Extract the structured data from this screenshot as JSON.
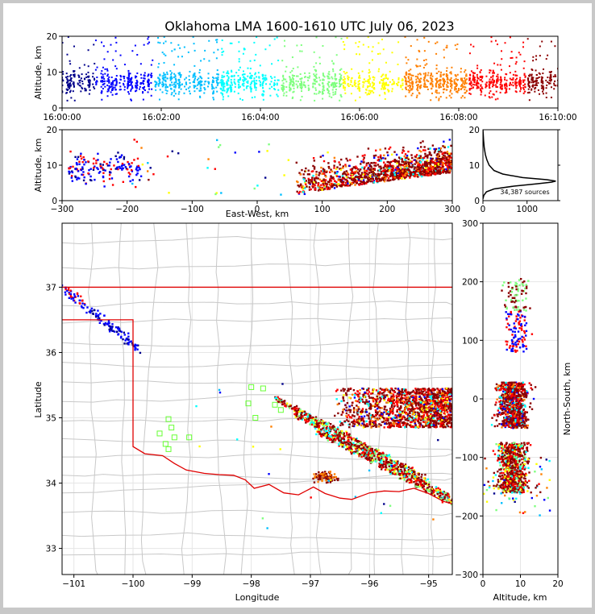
{
  "figure": {
    "title": "Oklahoma LMA 1600-1610 UTC July 06, 2023"
  },
  "chart_data": [
    {
      "panel": "altitude-time",
      "type": "scatter",
      "ylabel": "Altitude, km",
      "ylim": [
        0,
        20
      ],
      "yticks": [
        "0",
        "10",
        "20"
      ],
      "xlim": [
        "16:00:00",
        "16:10:00"
      ],
      "xticks": [
        "16:00:00",
        "16:02:00",
        "16:04:00",
        "16:06:00",
        "16:08:00",
        "16:10:00"
      ],
      "color_by": "time",
      "colormap": [
        "#00008b",
        "#0000ff",
        "#00bfff",
        "#00ffff",
        "#7fff7f",
        "#ffff00",
        "#ff7f00",
        "#ff0000",
        "#8b0000"
      ]
    },
    {
      "panel": "altitude-eastwest",
      "type": "scatter",
      "xlabel": "East-West, km",
      "ylabel": "Altitude, km",
      "xlim": [
        -300,
        300
      ],
      "ylim": [
        0,
        20
      ],
      "xticks": [
        "−300",
        "−200",
        "−100",
        "0",
        "100",
        "200",
        "300"
      ],
      "yticks": [
        "0",
        "10",
        "20"
      ]
    },
    {
      "panel": "altitude-histogram",
      "type": "line",
      "xlim": [
        0,
        1700
      ],
      "ylim": [
        0,
        20
      ],
      "xticks": [
        "0",
        "1000"
      ],
      "yticks": [
        "0",
        "10",
        "20"
      ],
      "source_count_label": "34,387 sources",
      "profile": [
        [
          0,
          0.5
        ],
        [
          20,
          1.5
        ],
        [
          80,
          2.5
        ],
        [
          250,
          3.3
        ],
        [
          700,
          4.1
        ],
        [
          1200,
          4.7
        ],
        [
          1550,
          5.2
        ],
        [
          1650,
          5.5
        ],
        [
          1450,
          5.9
        ],
        [
          900,
          6.5
        ],
        [
          450,
          7.5
        ],
        [
          250,
          8.5
        ],
        [
          140,
          10
        ],
        [
          90,
          11.5
        ],
        [
          55,
          13
        ],
        [
          30,
          15
        ],
        [
          15,
          17
        ],
        [
          5,
          19
        ],
        [
          0,
          20
        ]
      ]
    },
    {
      "panel": "plan-view-map",
      "type": "scatter",
      "xlabel": "Longitude",
      "ylabel": "Latitude",
      "xlim": [
        -101.2,
        -94.6
      ],
      "ylim": [
        32.6,
        37.98
      ],
      "xticks": [
        "−101",
        "−100",
        "−99",
        "−98",
        "−97",
        "−96",
        "−95"
      ],
      "yticks": [
        "33",
        "34",
        "35",
        "36",
        "37"
      ]
    },
    {
      "panel": "northsouth-altitude",
      "type": "scatter",
      "xlabel": "Altitude, km",
      "ylabel": "North-South, km",
      "xlim": [
        0,
        20
      ],
      "ylim": [
        -300,
        300
      ],
      "xticks": [
        "0",
        "10",
        "20"
      ],
      "yticks": [
        "−300",
        "−200",
        "−100",
        "0",
        "100",
        "200",
        "300"
      ]
    }
  ],
  "colors": {
    "state_border": "#e00000",
    "county_lines": "#c8c8c8",
    "station_marker": "#66ff33",
    "gridline": "#e6e6e6"
  }
}
